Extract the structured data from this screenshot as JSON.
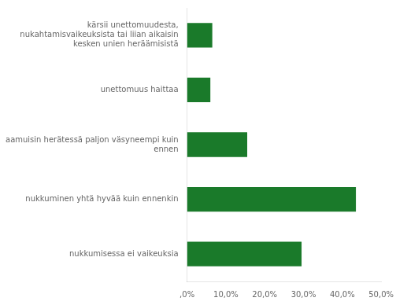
{
  "chart_data": {
    "type": "bar",
    "orientation": "horizontal",
    "categories": [
      "kärsii unettomuudesta,\nnukahtamisvaikeuksista tai liian aikaisin\nkesken unien heräämisistä",
      "unettomuus haittaa",
      "aamuisin herätessä paljon väsyneempi kuin\nennen",
      "nukkuminen yhtä hyvää kuin ennenkin",
      "nukkumisessa ei vaikeuksia"
    ],
    "values": [
      6.5,
      6.0,
      15.5,
      43.5,
      29.5
    ],
    "color": "#1a7a2a",
    "xlim": [
      0,
      50
    ],
    "xticks": [
      {
        "value": 0,
        "label": ",0%"
      },
      {
        "value": 10,
        "label": "10,0%"
      },
      {
        "value": 20,
        "label": "20,0%"
      },
      {
        "value": 30,
        "label": "30,0%"
      },
      {
        "value": 40,
        "label": "40,0%"
      },
      {
        "value": 50,
        "label": "50,0%"
      }
    ],
    "grid": false
  }
}
